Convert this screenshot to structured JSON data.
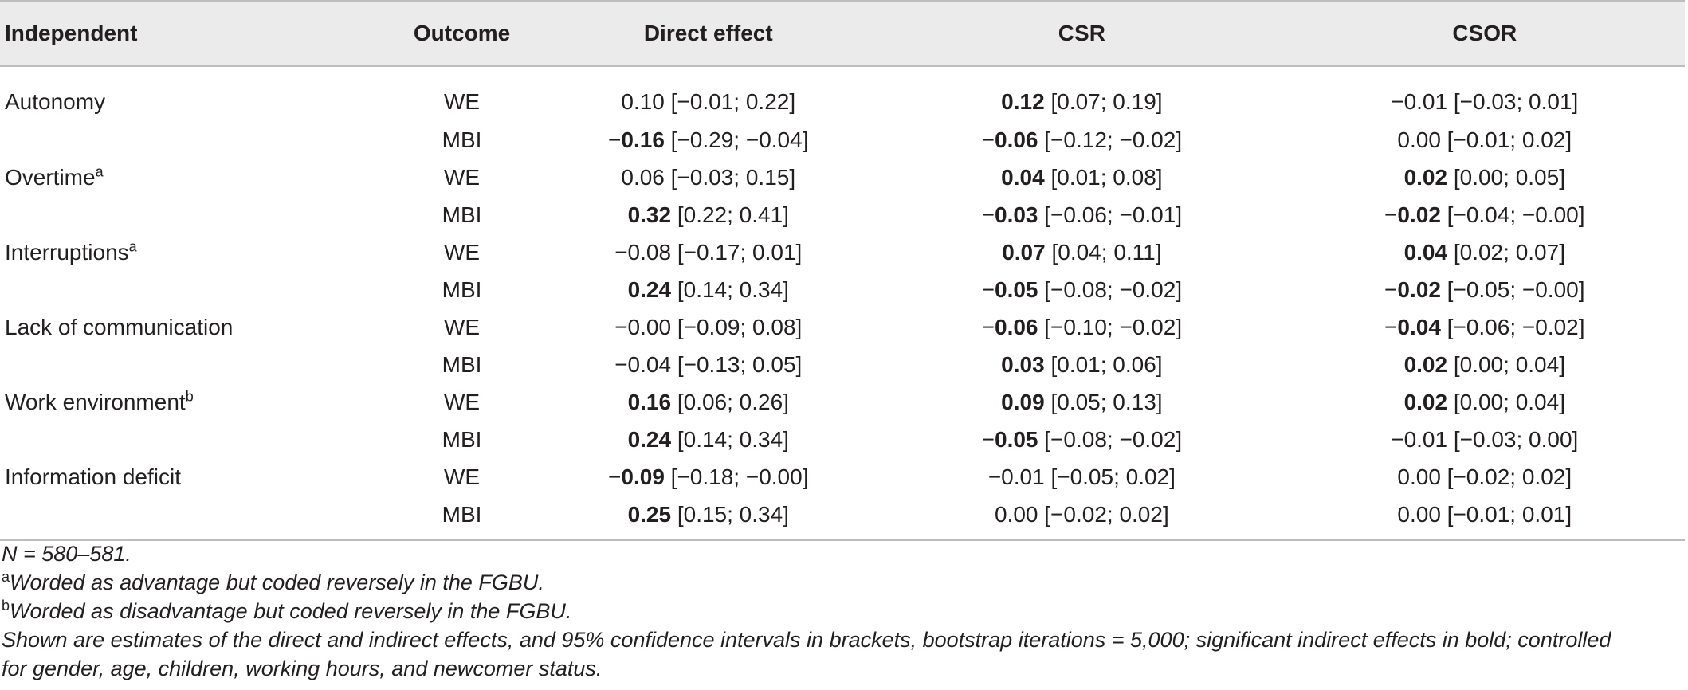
{
  "table": {
    "headers": [
      "Independent",
      "Outcome",
      "Direct effect",
      "CSR",
      "CSOR"
    ],
    "rows": [
      {
        "independent": "Autonomy",
        "sup": "",
        "outcome": "WE",
        "de": [
          "",
          "0.10",
          " [−0.01; 0.22]"
        ],
        "csr": [
          "",
          "0.12",
          " [0.07; 0.19]"
        ],
        "csor": [
          "",
          "−0.01",
          " [−0.03; 0.01]"
        ]
      },
      {
        "independent": "",
        "sup": "",
        "outcome": "MBI",
        "de": [
          "−",
          "0.16",
          " [−0.29; −0.04]"
        ],
        "csr": [
          "−",
          "0.06",
          " [−0.12; −0.02]"
        ],
        "csor": [
          "",
          "0.00",
          " [−0.01; 0.02]"
        ]
      },
      {
        "independent": "Overtime",
        "sup": "a",
        "outcome": "WE",
        "de": [
          "",
          "0.06",
          " [−0.03; 0.15]"
        ],
        "csr": [
          "",
          "0.04",
          " [0.01; 0.08]"
        ],
        "csor": [
          "",
          "0.02",
          " [0.00; 0.05]"
        ]
      },
      {
        "independent": "",
        "sup": "",
        "outcome": "MBI",
        "de": [
          "",
          "0.32",
          " [0.22; 0.41]"
        ],
        "csr": [
          "−",
          "0.03",
          " [−0.06; −0.01]"
        ],
        "csor": [
          "−",
          "0.02",
          " [−0.04; −0.00]"
        ]
      },
      {
        "independent": "Interruptions",
        "sup": "a",
        "outcome": "WE",
        "de": [
          "",
          "−0.08",
          " [−0.17; 0.01]"
        ],
        "csr": [
          "",
          "0.07",
          " [0.04; 0.11]"
        ],
        "csor": [
          "",
          "0.04",
          " [0.02; 0.07]"
        ]
      },
      {
        "independent": "",
        "sup": "",
        "outcome": "MBI",
        "de": [
          "",
          "0.24",
          " [0.14; 0.34]"
        ],
        "csr": [
          "−",
          "0.05",
          " [−0.08; −0.02]"
        ],
        "csor": [
          "−",
          "0.02",
          " [−0.05; −0.00]"
        ]
      },
      {
        "independent": "Lack of communication",
        "sup": "",
        "outcome": "WE",
        "de": [
          "",
          "−0.00",
          " [−0.09; 0.08]"
        ],
        "csr": [
          "−",
          "0.06",
          " [−0.10; −0.02]"
        ],
        "csor": [
          "−",
          "0.04",
          " [−0.06; −0.02]"
        ]
      },
      {
        "independent": "",
        "sup": "",
        "outcome": "MBI",
        "de": [
          "",
          "−0.04",
          " [−0.13; 0.05]"
        ],
        "csr": [
          "",
          "0.03",
          " [0.01; 0.06]"
        ],
        "csor": [
          "",
          "0.02",
          " [0.00; 0.04]"
        ]
      },
      {
        "independent": "Work environment",
        "sup": "b",
        "outcome": "WE",
        "de": [
          "",
          "0.16",
          " [0.06; 0.26]"
        ],
        "csr": [
          "",
          "0.09",
          " [0.05; 0.13]"
        ],
        "csor": [
          "",
          "0.02",
          " [0.00; 0.04]"
        ]
      },
      {
        "independent": "",
        "sup": "",
        "outcome": "MBI",
        "de": [
          "",
          "0.24",
          " [0.14; 0.34]"
        ],
        "csr": [
          "−",
          "0.05",
          " [−0.08; −0.02]"
        ],
        "csor": [
          "",
          "−0.01",
          " [−0.03; 0.00]"
        ]
      },
      {
        "independent": "Information deficit",
        "sup": "",
        "outcome": "WE",
        "de": [
          "−",
          "0.09",
          " [−0.18; −0.00]"
        ],
        "csr": [
          "",
          "−0.01",
          " [−0.05; 0.02]"
        ],
        "csor": [
          "",
          "0.00",
          " [−0.02; 0.02]"
        ]
      },
      {
        "independent": "",
        "sup": "",
        "outcome": "MBI",
        "de": [
          "",
          "0.25",
          " [0.15; 0.34]"
        ],
        "csr": [
          "",
          "0.00",
          " [−0.02; 0.02]"
        ],
        "csor": [
          "",
          "0.00",
          " [−0.01; 0.01]"
        ]
      }
    ],
    "bold": [
      [
        false,
        true,
        false
      ],
      [
        true,
        true,
        false
      ],
      [
        false,
        true,
        true
      ],
      [
        true,
        true,
        true
      ],
      [
        false,
        true,
        true
      ],
      [
        true,
        true,
        true
      ],
      [
        false,
        true,
        true
      ],
      [
        false,
        true,
        true
      ],
      [
        true,
        true,
        true
      ],
      [
        true,
        true,
        false
      ],
      [
        true,
        false,
        false
      ],
      [
        true,
        false,
        false
      ]
    ]
  },
  "notes": {
    "n": "N = 580–581.",
    "a_mark": "a",
    "a_text": "Worded as advantage but coded reversely in the FGBU.",
    "b_mark": "b",
    "b_text": "Worded as disadvantage but coded reversely in the FGBU.",
    "general_line1": "Shown are estimates of the direct and indirect effects, and 95% confidence intervals in brackets, bootstrap iterations = 5,000; significant indirect effects in bold; controlled",
    "general_line2": "for gender, age, children, working hours, and newcomer status."
  }
}
